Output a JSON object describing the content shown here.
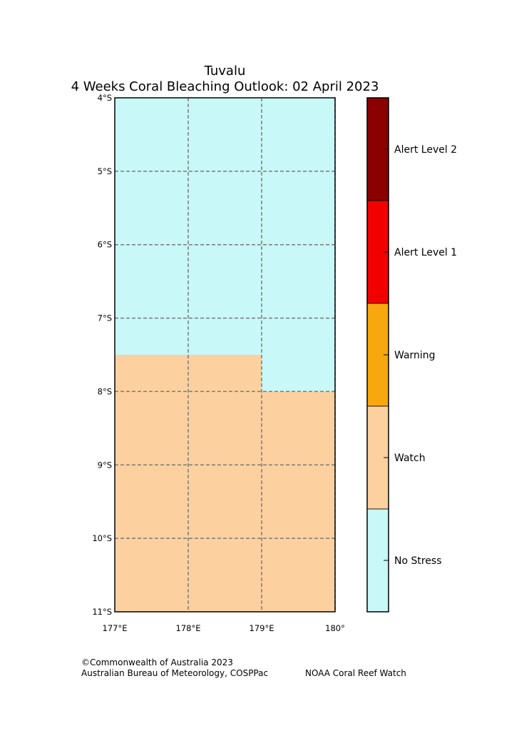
{
  "title": {
    "line1": "Tuvalu",
    "line2": "4 Weeks Coral Bleaching Outlook: 02 April 2023"
  },
  "map": {
    "lon_range": [
      177,
      180
    ],
    "lat_range": [
      -11,
      -4
    ],
    "lat_ticks": [
      {
        "value": -4,
        "label": "4°S"
      },
      {
        "value": -5,
        "label": "5°S"
      },
      {
        "value": -6,
        "label": "6°S"
      },
      {
        "value": -7,
        "label": "7°S"
      },
      {
        "value": -8,
        "label": "8°S"
      },
      {
        "value": -9,
        "label": "9°S"
      },
      {
        "value": -10,
        "label": "10°S"
      },
      {
        "value": -11,
        "label": "11°S"
      }
    ],
    "lon_ticks": [
      {
        "value": 177,
        "label": "177°E"
      },
      {
        "value": 178,
        "label": "178°E"
      },
      {
        "value": 179,
        "label": "179°E"
      },
      {
        "value": 180,
        "label": "180°"
      }
    ],
    "gridline_color": "#7a7a7a",
    "regions": [
      {
        "level": "No Stress",
        "lon": [
          177,
          180
        ],
        "lat": [
          -7.5,
          -4
        ]
      },
      {
        "level": "No Stress",
        "lon": [
          179,
          180
        ],
        "lat": [
          -8,
          -7.5
        ]
      },
      {
        "level": "Watch",
        "lon": [
          177,
          179
        ],
        "lat": [
          -8,
          -7.5
        ]
      },
      {
        "level": "Watch",
        "lon": [
          177,
          180
        ],
        "lat": [
          -11,
          -8
        ]
      }
    ]
  },
  "legend": {
    "levels": [
      {
        "label": "Alert Level 2",
        "color": "#8b0000"
      },
      {
        "label": "Alert Level 1",
        "color": "#f20000"
      },
      {
        "label": "Warning",
        "color": "#f8a70e"
      },
      {
        "label": "Watch",
        "color": "#fdd19f"
      },
      {
        "label": "No Stress",
        "color": "#c8f8f7"
      }
    ]
  },
  "credits": {
    "line1": "©Commonwealth of Australia 2023",
    "line2": "Australian Bureau of Meteorology, COSPPac",
    "right": "NOAA Coral Reef Watch"
  }
}
